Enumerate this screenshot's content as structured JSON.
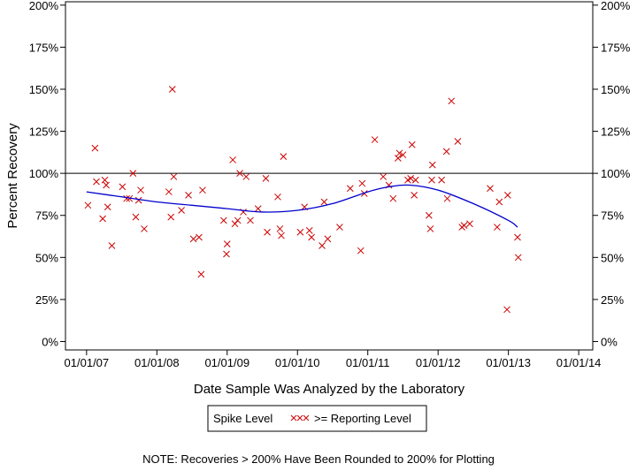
{
  "chart_data": {
    "type": "scatter",
    "title": "",
    "xlabel": "Date Sample Was Analyzed by the Laboratory",
    "ylabel": "Percent Recovery",
    "x_tick_labels": [
      "01/01/07",
      "01/01/08",
      "01/01/09",
      "01/01/10",
      "01/01/11",
      "01/01/12",
      "01/01/13",
      "01/01/14"
    ],
    "x_tick_years": [
      2007,
      2008,
      2009,
      2010,
      2011,
      2012,
      2013,
      2014
    ],
    "xlim": [
      2006.7,
      2014.2
    ],
    "y_tick_labels": [
      "0%",
      "25%",
      "50%",
      "75%",
      "100%",
      "125%",
      "150%",
      "175%",
      "200%"
    ],
    "y_tick_values": [
      0,
      25,
      50,
      75,
      100,
      125,
      150,
      175,
      200
    ],
    "ylim": [
      -5,
      202
    ],
    "reference_line": 100,
    "grid": false,
    "marker_color": "#cc0000",
    "trend_color": "#0000cc",
    "legend_entries": [
      "Spike Level",
      ">= Reporting Level"
    ],
    "legend_placement": "bottom-center",
    "note": "NOTE: Recoveries > 200% Have Been Rounded to 200% for Plotting",
    "series": [
      {
        "name": ">= Reporting Level",
        "x": [
          2007.02,
          2007.12,
          2007.14,
          2007.23,
          2007.26,
          2007.28,
          2007.3,
          2007.36,
          2007.51,
          2007.57,
          2007.61,
          2007.66,
          2007.7,
          2007.74,
          2007.77,
          2007.82,
          2008.17,
          2008.2,
          2008.22,
          2008.24,
          2008.35,
          2008.45,
          2008.52,
          2008.6,
          2008.63,
          2008.65,
          2008.95,
          2008.99,
          2009.0,
          2009.08,
          2009.11,
          2009.15,
          2009.18,
          2009.23,
          2009.27,
          2009.33,
          2009.44,
          2009.55,
          2009.57,
          2009.72,
          2009.75,
          2009.77,
          2009.8,
          2010.04,
          2010.1,
          2010.17,
          2010.2,
          2010.35,
          2010.38,
          2010.43,
          2010.6,
          2010.75,
          2010.9,
          2010.92,
          2010.95,
          2011.1,
          2011.22,
          2011.3,
          2011.36,
          2011.43,
          2011.45,
          2011.5,
          2011.57,
          2011.61,
          2011.63,
          2011.66,
          2011.68,
          2011.87,
          2011.89,
          2011.91,
          2011.92,
          2012.05,
          2012.12,
          2012.13,
          2012.19,
          2012.28,
          2012.34,
          2012.37,
          2012.45,
          2012.74,
          2012.84,
          2012.87,
          2012.98,
          2012.99,
          2013.13,
          2013.14
        ],
        "y": [
          81,
          115,
          95,
          73,
          96,
          93,
          80,
          57,
          92,
          85,
          85,
          100,
          74,
          84,
          90,
          67,
          89,
          74,
          150,
          98,
          78,
          87,
          61,
          62,
          40,
          90,
          72,
          52,
          58,
          108,
          70,
          72,
          100,
          77,
          98,
          72,
          79,
          97,
          65,
          86,
          67,
          63,
          110,
          65,
          80,
          66,
          62,
          57,
          83,
          61,
          68,
          91,
          54,
          94,
          88,
          120,
          98,
          93,
          85,
          109,
          112,
          111,
          96,
          97,
          117,
          87,
          96,
          75,
          67,
          96,
          105,
          96,
          113,
          85,
          143,
          119,
          68,
          69,
          70,
          91,
          68,
          83,
          19,
          87,
          62,
          50
        ]
      },
      {
        "name": "",
        "kind": "trend",
        "x": [
          2007.0,
          2007.5,
          2008.0,
          2008.5,
          2009.0,
          2009.5,
          2010.0,
          2010.5,
          2011.0,
          2011.3,
          2011.6,
          2012.0,
          2012.5,
          2013.0,
          2013.13
        ],
        "y": [
          89,
          86,
          83,
          81,
          79,
          77,
          78,
          82,
          89,
          92,
          93,
          90,
          82,
          72,
          68
        ]
      }
    ]
  }
}
